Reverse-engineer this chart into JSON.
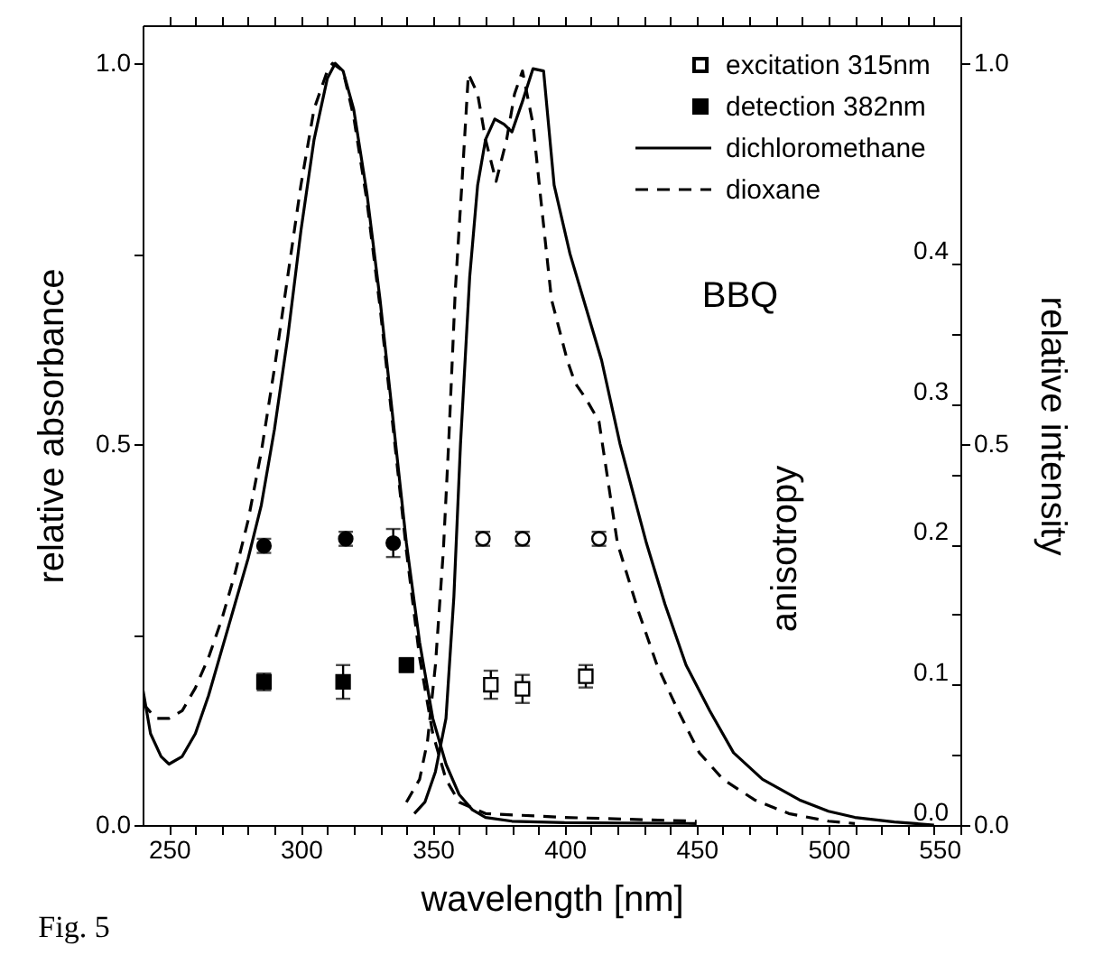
{
  "chart_data": {
    "type": "line",
    "xlabel": "wavelength [nm]",
    "ylabel": "relative absorbance",
    "y2label": "relative intensity",
    "y3label": "anisotropy",
    "annotations": [
      "BBQ",
      "Fig. 5"
    ],
    "xlim": [
      240,
      550
    ],
    "ylim": [
      0,
      1.05
    ],
    "y2lim": [
      0,
      1.05
    ],
    "y3lim": [
      0,
      0.57
    ],
    "xticks": [
      {
        "value": 250,
        "label": "250"
      },
      {
        "value": 260,
        "label": null
      },
      {
        "value": 270,
        "label": null
      },
      {
        "value": 280,
        "label": null
      },
      {
        "value": 290,
        "label": null
      },
      {
        "value": 300,
        "label": "300"
      },
      {
        "value": 310,
        "label": null
      },
      {
        "value": 320,
        "label": null
      },
      {
        "value": 330,
        "label": null
      },
      {
        "value": 340,
        "label": null
      },
      {
        "value": 350,
        "label": "350"
      },
      {
        "value": 360,
        "label": null
      },
      {
        "value": 370,
        "label": null
      },
      {
        "value": 380,
        "label": null
      },
      {
        "value": 390,
        "label": null
      },
      {
        "value": 400,
        "label": "400"
      },
      {
        "value": 410,
        "label": null
      },
      {
        "value": 420,
        "label": null
      },
      {
        "value": 430,
        "label": null
      },
      {
        "value": 440,
        "label": null
      },
      {
        "value": 450,
        "label": "450"
      },
      {
        "value": 460,
        "label": null
      },
      {
        "value": 470,
        "label": null
      },
      {
        "value": 480,
        "label": null
      },
      {
        "value": 490,
        "label": null
      },
      {
        "value": 500,
        "label": "500"
      },
      {
        "value": 510,
        "label": null
      },
      {
        "value": 520,
        "label": null
      },
      {
        "value": 530,
        "label": null
      },
      {
        "value": 540,
        "label": null
      },
      {
        "value": 550,
        "label": "550"
      }
    ],
    "yticks": [
      {
        "value": 0,
        "label": "0.0"
      },
      {
        "value": 0.25,
        "label": null
      },
      {
        "value": 0.5,
        "label": "0.5"
      },
      {
        "value": 0.75,
        "label": null
      },
      {
        "value": 1,
        "label": "1.0"
      }
    ],
    "y2ticks": [
      {
        "value": 0,
        "label": "0.0"
      },
      {
        "value": 0.5,
        "label": "0.5"
      },
      {
        "value": 1,
        "label": "1.0"
      }
    ],
    "y3ticks": [
      {
        "value": 0,
        "label": "0.0"
      },
      {
        "value": 0.05,
        "label": null
      },
      {
        "value": 0.1,
        "label": "0.1"
      },
      {
        "value": 0.15,
        "label": null
      },
      {
        "value": 0.2,
        "label": "0.2"
      },
      {
        "value": 0.25,
        "label": null
      },
      {
        "value": 0.3,
        "label": "0.3"
      },
      {
        "value": 0.35,
        "label": null
      },
      {
        "value": 0.4,
        "label": "0.4"
      }
    ],
    "grid": false,
    "legend": "top right",
    "series": [
      {
        "name": "excitation 315nm",
        "type": "scatter",
        "marker": "square",
        "color": "#ffffff",
        "axis": "y3",
        "x": [
          372,
          384,
          408
        ],
        "values": [
          0.1,
          0.097,
          0.106
        ],
        "errors": [
          0.01,
          0.01,
          0.008
        ]
      },
      {
        "name": "detection 382nm",
        "type": "scatter",
        "marker": "square",
        "color": "#000000",
        "axis": "y3",
        "x": [
          286,
          316,
          340
        ],
        "values": [
          0.102,
          0.102,
          0.114
        ],
        "errors": [
          0.006,
          0.012,
          0.005
        ]
      },
      {
        "type": "scatter",
        "marker": "circle",
        "color": "#ffffff",
        "axis": "y3",
        "x": [
          369,
          384,
          413
        ],
        "values": [
          0.204,
          0.204,
          0.204
        ],
        "errors": [
          0.005,
          0.005,
          0.005
        ]
      },
      {
        "type": "scatter",
        "marker": "circle",
        "color": "#000000",
        "axis": "y3",
        "x": [
          286,
          317,
          335
        ],
        "values": [
          0.199,
          0.204,
          0.201
        ],
        "errors": [
          0.005,
          0.005,
          0.01
        ]
      },
      {
        "name": "dichloromethane",
        "type": "line",
        "line_style": "solid",
        "color": "#000000",
        "axis": "y",
        "x": [
          240,
          243,
          247,
          250,
          255,
          260,
          265,
          270,
          275,
          280,
          285,
          290,
          295,
          300,
          305,
          310,
          313,
          316,
          320,
          325,
          330,
          335,
          340,
          345,
          350,
          355,
          360,
          365,
          370,
          380,
          400,
          450
        ],
        "values": [
          0.18,
          0.12,
          0.09,
          0.08,
          0.09,
          0.12,
          0.17,
          0.23,
          0.29,
          0.35,
          0.42,
          0.52,
          0.64,
          0.78,
          0.9,
          0.98,
          1.0,
          0.99,
          0.94,
          0.83,
          0.69,
          0.53,
          0.37,
          0.24,
          0.14,
          0.08,
          0.04,
          0.02,
          0.01,
          0.005,
          0.003,
          0.002
        ]
      },
      {
        "name": "dioxane",
        "type": "line",
        "line_style": "dashed",
        "color": "#000000",
        "axis": "y",
        "x": [
          240,
          245,
          250,
          255,
          260,
          265,
          270,
          275,
          280,
          285,
          290,
          295,
          300,
          305,
          310,
          312,
          316,
          320,
          325,
          330,
          335,
          340,
          345,
          350,
          355,
          360,
          370,
          400,
          450
        ],
        "values": [
          0.16,
          0.14,
          0.14,
          0.15,
          0.18,
          0.22,
          0.27,
          0.33,
          0.4,
          0.49,
          0.6,
          0.72,
          0.84,
          0.94,
          0.99,
          1.0,
          0.99,
          0.93,
          0.82,
          0.68,
          0.52,
          0.36,
          0.22,
          0.12,
          0.06,
          0.03,
          0.015,
          0.01,
          0.005
        ]
      },
      {
        "type": "line",
        "line_style": "solid",
        "color": "#000000",
        "axis": "y2",
        "x": [
          343,
          347,
          351,
          355,
          358,
          360.5,
          364,
          367,
          370,
          373.5,
          377,
          380,
          384,
          388,
          392,
          396,
          402,
          408,
          414,
          421,
          431,
          438,
          446,
          455,
          464,
          475,
          489,
          500,
          510,
          525,
          540
        ],
        "values": [
          0.015,
          0.03,
          0.07,
          0.14,
          0.3,
          0.5,
          0.72,
          0.84,
          0.9,
          0.927,
          0.92,
          0.91,
          0.95,
          0.993,
          0.99,
          0.84,
          0.75,
          0.68,
          0.61,
          0.5,
          0.37,
          0.29,
          0.21,
          0.15,
          0.095,
          0.06,
          0.033,
          0.018,
          0.01,
          0.004,
          0.0
        ]
      },
      {
        "type": "line",
        "line_style": "dashed",
        "color": "#000000",
        "axis": "y2",
        "x": [
          340,
          345,
          348,
          351,
          354,
          356,
          358.5,
          361,
          363.5,
          367,
          370,
          374,
          378,
          381,
          384,
          388,
          391,
          395,
          401,
          404,
          408,
          413,
          420,
          428,
          435,
          443,
          451,
          460,
          472,
          485,
          500,
          510
        ],
        "values": [
          0.03,
          0.06,
          0.11,
          0.21,
          0.36,
          0.5,
          0.7,
          0.84,
          0.986,
          0.96,
          0.9,
          0.845,
          0.9,
          0.96,
          0.99,
          0.92,
          0.82,
          0.69,
          0.61,
          0.58,
          0.56,
          0.53,
          0.37,
          0.28,
          0.21,
          0.15,
          0.095,
          0.06,
          0.033,
          0.015,
          0.005,
          0.002
        ]
      }
    ]
  }
}
